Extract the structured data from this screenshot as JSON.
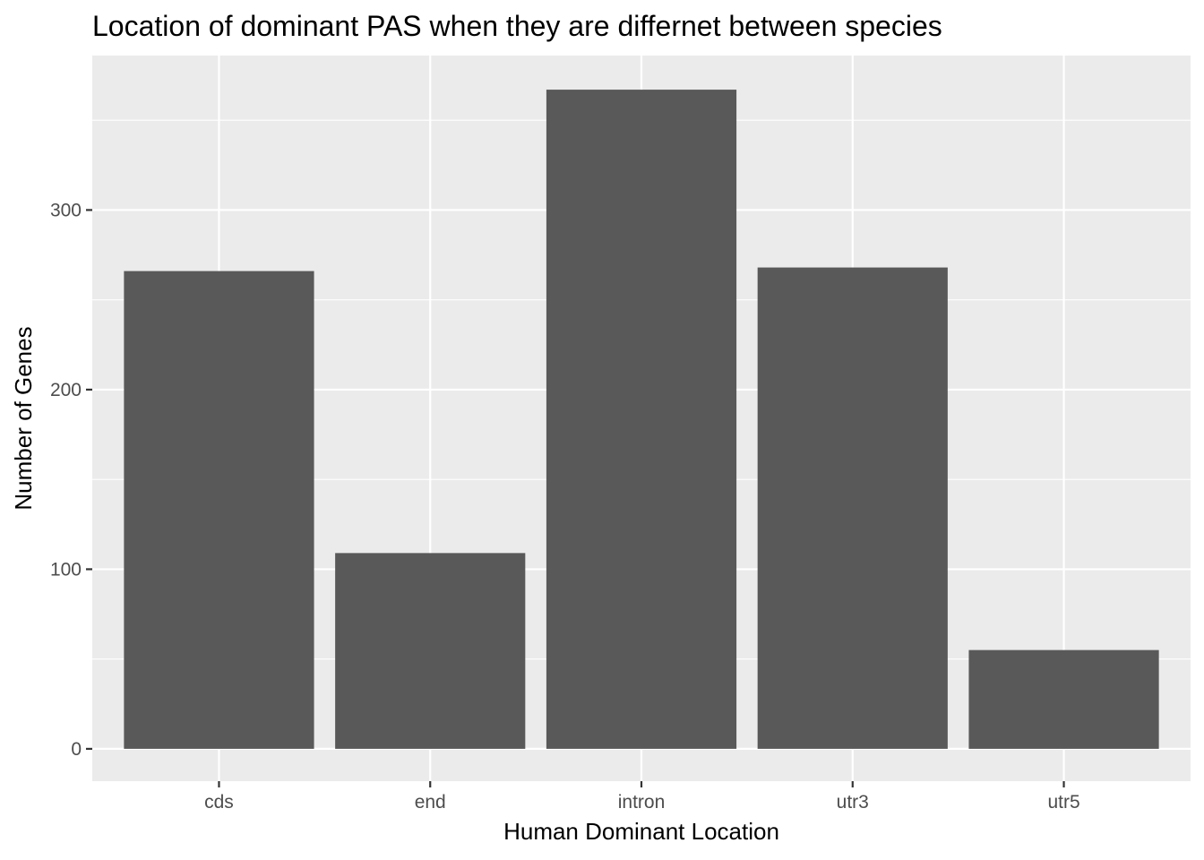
{
  "chart_data": {
    "type": "bar",
    "title": "Location of dominant PAS when they are differnet between species",
    "xlabel": "Human Dominant Location",
    "ylabel": "Number of Genes",
    "categories": [
      "cds",
      "end",
      "intron",
      "utr3",
      "utr5"
    ],
    "values": [
      266,
      109,
      367,
      268,
      55
    ],
    "ylim": [
      -18,
      386
    ],
    "y_ticks": [
      0,
      100,
      200,
      300
    ],
    "y_tick_labels": [
      "0",
      "100",
      "200",
      "300"
    ],
    "y_minor_ticks": [
      50,
      150,
      250,
      350
    ],
    "grid": true,
    "legend": "none",
    "colors": {
      "bar": "#595959",
      "panel_background": "#ebebeb",
      "grid": "#ffffff",
      "tick": "#333333"
    }
  }
}
